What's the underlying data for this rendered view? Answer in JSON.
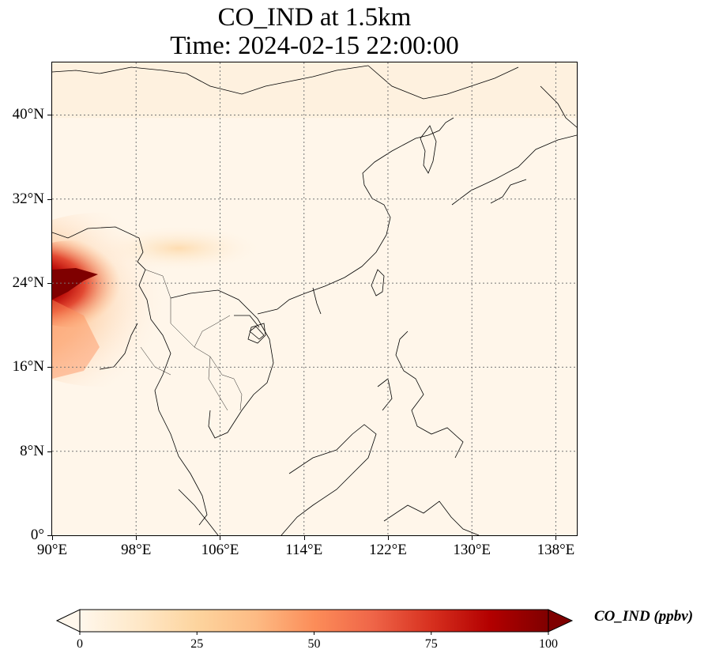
{
  "title": {
    "line1": "CO_IND at 1.5km",
    "line2": "Time: 2024-02-15 22:00:00"
  },
  "map": {
    "variable": "CO_IND",
    "level": "1.5km",
    "lon_range": [
      90,
      140
    ],
    "lat_range": [
      0,
      45
    ],
    "gridlines": "dotted grey",
    "lat_ticks": [
      {
        "value": 0,
        "label": "0°"
      },
      {
        "value": 8,
        "label": "8°N"
      },
      {
        "value": 16,
        "label": "16°N"
      },
      {
        "value": 24,
        "label": "24°N"
      },
      {
        "value": 32,
        "label": "32°N"
      },
      {
        "value": 40,
        "label": "40°N"
      }
    ],
    "lon_ticks": [
      {
        "value": 90,
        "label": "90°E"
      },
      {
        "value": 98,
        "label": "98°E"
      },
      {
        "value": 106,
        "label": "106°E"
      },
      {
        "value": 114,
        "label": "114°E"
      },
      {
        "value": 122,
        "label": "122°E"
      },
      {
        "value": 130,
        "label": "130°E"
      },
      {
        "value": 138,
        "label": "138°E"
      }
    ]
  },
  "colorbar": {
    "label": "CO_IND (ppbv)",
    "colormap": "OrRd",
    "range": [
      0,
      100
    ],
    "extend": "both",
    "ticks": [
      {
        "value": 0,
        "label": "0"
      },
      {
        "value": 25,
        "label": "25"
      },
      {
        "value": 50,
        "label": "50"
      },
      {
        "value": 75,
        "label": "75"
      },
      {
        "value": 100,
        "label": "100"
      }
    ],
    "colors": [
      "#fff7ec",
      "#fee8c8",
      "#fdd49e",
      "#fdbb84",
      "#fc8d59",
      "#ef6548",
      "#d7301f",
      "#b30000",
      "#7f0000"
    ]
  }
}
